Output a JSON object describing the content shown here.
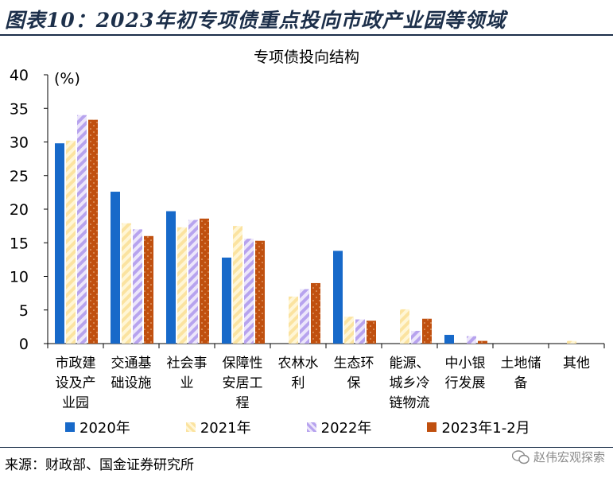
{
  "figure_title": "图表10：2023年初专项债重点投向市政产业园等领域",
  "source": "来源：财政部、国金证券研究所",
  "watermark": "赵伟宏观探索",
  "colors": {
    "2020": "#1769c9",
    "2021": "#fbe7a8",
    "2022": "#c3b2f0",
    "2023": "#c0500f",
    "title": "#1c2f4a"
  },
  "chart_data": {
    "type": "bar",
    "title": "专项债投向结构",
    "ylabel": "(%)",
    "ylim": [
      0,
      40
    ],
    "yticks": [
      "0",
      "5",
      "10",
      "15",
      "20",
      "25",
      "30",
      "35",
      "40"
    ],
    "categories": [
      [
        "市政建",
        "设及产",
        "业园"
      ],
      [
        "交通基",
        "础设施"
      ],
      [
        "社会事",
        "业"
      ],
      [
        "保障性",
        "安居工",
        "程"
      ],
      [
        "农林水",
        "利"
      ],
      [
        "生态环",
        "保"
      ],
      [
        "能源、",
        "城乡冷",
        "链物流"
      ],
      [
        "中小银",
        "行发展"
      ],
      [
        "土地储",
        "备"
      ],
      [
        "其他"
      ]
    ],
    "series": [
      {
        "name": "2020年",
        "values": [
          29.8,
          22.6,
          19.7,
          12.8,
          0,
          13.8,
          0,
          1.3,
          0,
          0
        ]
      },
      {
        "name": "2021年",
        "values": [
          30.2,
          17.9,
          17.3,
          17.5,
          7.0,
          4.0,
          5.1,
          0,
          0,
          0.4
        ]
      },
      {
        "name": "2022年",
        "values": [
          34.0,
          17.0,
          18.4,
          15.6,
          8.1,
          3.6,
          1.9,
          1.1,
          0,
          0
        ]
      },
      {
        "name": "2023年1-2月",
        "values": [
          33.3,
          16.0,
          18.6,
          15.3,
          9.0,
          3.4,
          3.7,
          0.4,
          0,
          0
        ]
      }
    ]
  }
}
